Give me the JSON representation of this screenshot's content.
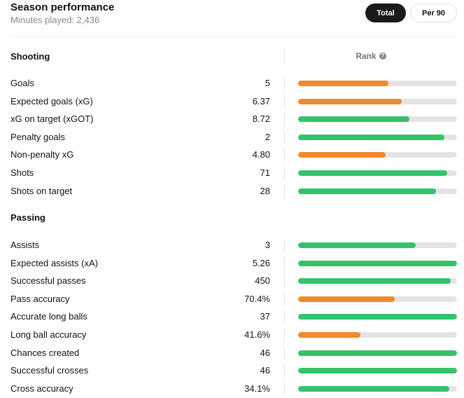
{
  "header": {
    "title": "Season performance",
    "subtitle": "Minutes played: 2,436"
  },
  "toggle": {
    "total_label": "Total",
    "per90_label": "Per 90",
    "active": "Total"
  },
  "rank_header": {
    "label": "Rank",
    "info_icon": "?"
  },
  "colors": {
    "orange": "#f08a2a",
    "green": "#34c26a",
    "track": "#e4e4e4"
  },
  "sections": [
    {
      "title": "Shooting",
      "stats": [
        {
          "label": "Goals",
          "value": "5",
          "rank_fill": 0.57,
          "color": "orange"
        },
        {
          "label": "Expected goals (xG)",
          "value": "6.37",
          "rank_fill": 0.65,
          "color": "orange"
        },
        {
          "label": "xG on target (xGOT)",
          "value": "8.72",
          "rank_fill": 0.7,
          "color": "green"
        },
        {
          "label": "Penalty goals",
          "value": "2",
          "rank_fill": 0.92,
          "color": "green"
        },
        {
          "label": "Non-penalty xG",
          "value": "4.80",
          "rank_fill": 0.55,
          "color": "orange"
        },
        {
          "label": "Shots",
          "value": "71",
          "rank_fill": 0.94,
          "color": "green"
        },
        {
          "label": "Shots on target",
          "value": "28",
          "rank_fill": 0.87,
          "color": "green"
        }
      ]
    },
    {
      "title": "Passing",
      "stats": [
        {
          "label": "Assists",
          "value": "3",
          "rank_fill": 0.74,
          "color": "green"
        },
        {
          "label": "Expected assists (xA)",
          "value": "5.26",
          "rank_fill": 1.0,
          "color": "green"
        },
        {
          "label": "Successful passes",
          "value": "450",
          "rank_fill": 0.96,
          "color": "green"
        },
        {
          "label": "Pass accuracy",
          "value": "70.4%",
          "rank_fill": 0.61,
          "color": "orange"
        },
        {
          "label": "Accurate long balls",
          "value": "37",
          "rank_fill": 1.0,
          "color": "green"
        },
        {
          "label": "Long ball accuracy",
          "value": "41.6%",
          "rank_fill": 0.39,
          "color": "orange"
        },
        {
          "label": "Chances created",
          "value": "46",
          "rank_fill": 1.0,
          "color": "green"
        },
        {
          "label": "Successful crosses",
          "value": "46",
          "rank_fill": 1.0,
          "color": "green"
        },
        {
          "label": "Cross accuracy",
          "value": "34.1%",
          "rank_fill": 0.95,
          "color": "green"
        }
      ]
    }
  ]
}
